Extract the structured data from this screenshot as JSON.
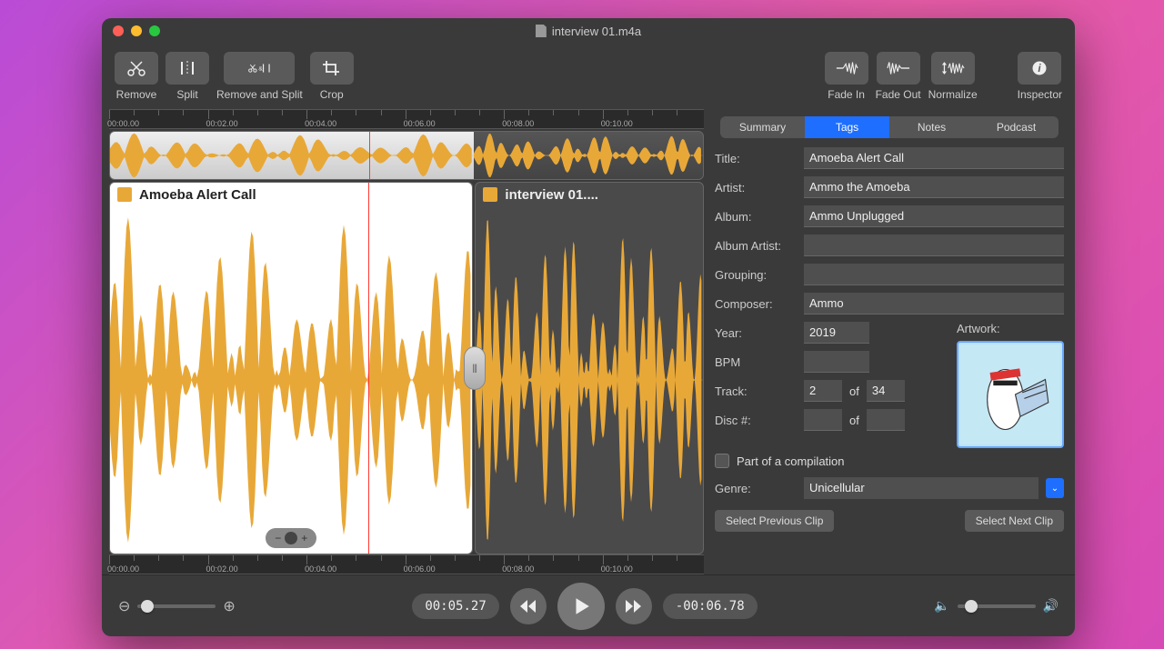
{
  "window": {
    "title": "interview 01.m4a"
  },
  "toolbar": {
    "left": [
      {
        "name": "remove-button",
        "label": "Remove",
        "icon": "scissors"
      },
      {
        "name": "split-button",
        "label": "Split",
        "icon": "split"
      },
      {
        "name": "remove-split-button",
        "label": "Remove and Split",
        "icon": "scissors-split",
        "wide": true
      },
      {
        "name": "crop-button",
        "label": "Crop",
        "icon": "crop"
      }
    ],
    "right": [
      {
        "name": "fade-in-button",
        "label": "Fade In",
        "icon": "fadein"
      },
      {
        "name": "fade-out-button",
        "label": "Fade Out",
        "icon": "fadeout"
      },
      {
        "name": "normalize-button",
        "label": "Normalize",
        "icon": "normalize"
      }
    ],
    "inspector": {
      "label": "Inspector",
      "icon": "info"
    }
  },
  "timeline": {
    "ruler_labels": [
      "00:00.00",
      "00:02.00",
      "00:04.00",
      "00:06.00",
      "00:08.00",
      "00:10.00"
    ],
    "duration_sec": 12.05,
    "playhead_sec": 5.27,
    "waveform_color": "#e8a838",
    "waveform_dark": "#c48a1f",
    "clips": [
      {
        "title": "Amoeba Alert Call",
        "start": 0.0,
        "end": 7.4,
        "selected": true
      },
      {
        "title": "interview 01....",
        "start": 7.4,
        "end": 12.05,
        "selected": false
      }
    ]
  },
  "inspector": {
    "tabs": [
      "Summary",
      "Tags",
      "Notes",
      "Podcast"
    ],
    "active_tab": 1,
    "fields": {
      "title_label": "Title:",
      "title": "Amoeba Alert Call",
      "artist_label": "Artist:",
      "artist": "Ammo the Amoeba",
      "album_label": "Album:",
      "album": "Ammo Unplugged",
      "album_artist_label": "Album Artist:",
      "album_artist": "",
      "grouping_label": "Grouping:",
      "grouping": "",
      "composer_label": "Composer:",
      "composer": "Ammo",
      "year_label": "Year:",
      "year": "2019",
      "artwork_label": "Artwork:",
      "bpm_label": "BPM",
      "bpm": "",
      "track_label": "Track:",
      "track": "2",
      "of_label": "of",
      "track_total": "34",
      "disc_label": "Disc #:",
      "disc": "",
      "disc_total": "",
      "compilation_label": "Part of a compilation",
      "compilation": false,
      "genre_label": "Genre:",
      "genre": "Unicellular"
    },
    "nav": {
      "prev": "Select Previous Clip",
      "next": "Select Next Clip"
    }
  },
  "transport": {
    "zoom_slider": 0.12,
    "current_time": "00:05.27",
    "remaining_time": "-00:06.78",
    "volume": 0.18
  },
  "colors": {
    "window_bg": "#3a3a3a",
    "accent": "#1e6fff",
    "playhead": "#ff3b30"
  }
}
